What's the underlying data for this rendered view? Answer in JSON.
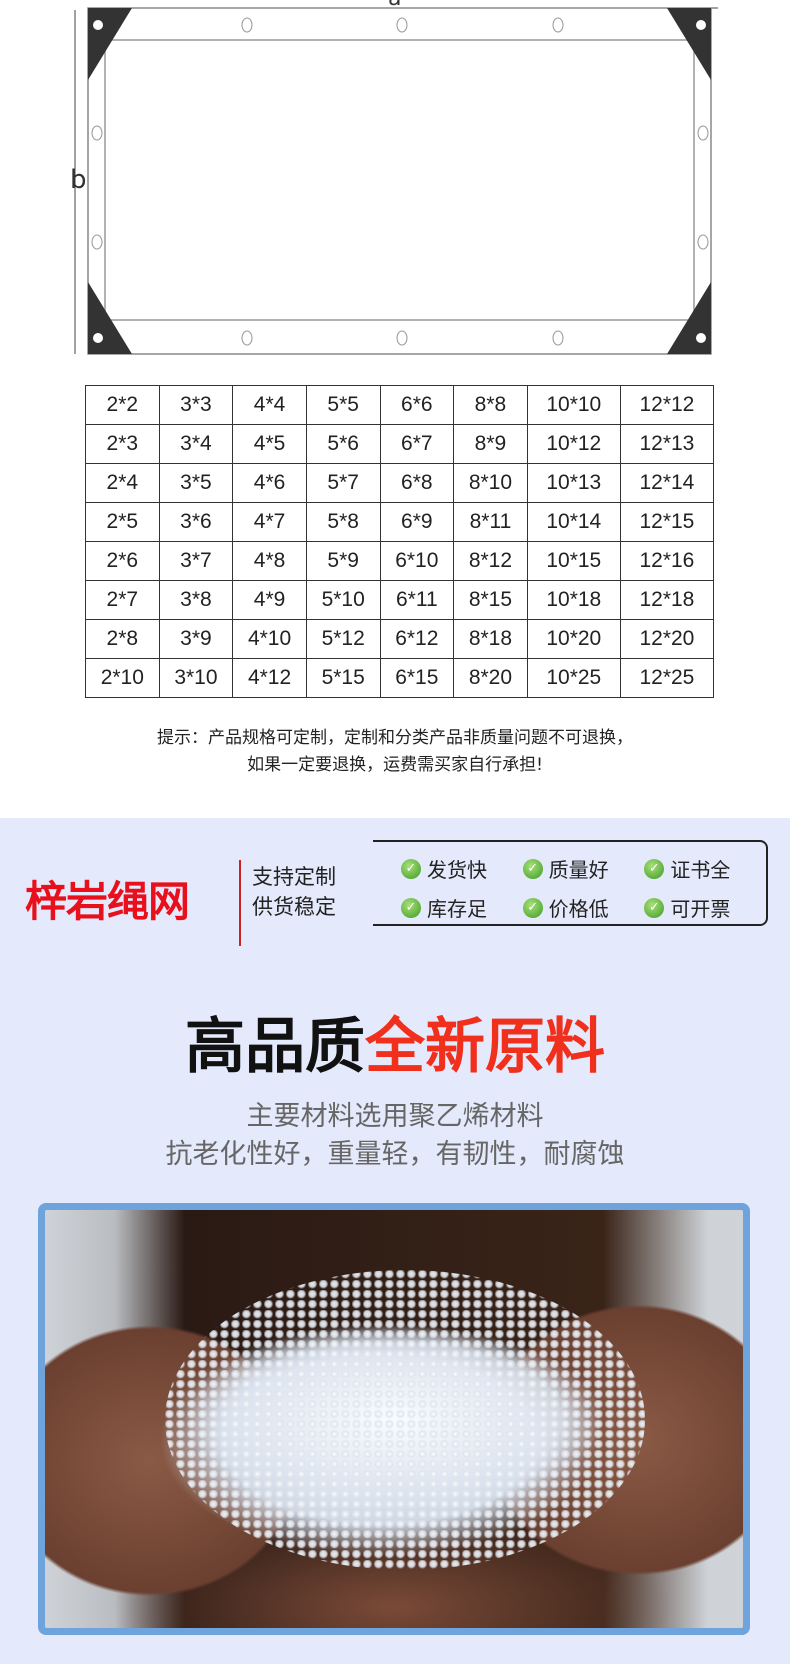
{
  "diagram": {
    "label_a": "a",
    "label_b": "b"
  },
  "size_table": [
    [
      "2*2",
      "3*3",
      "4*4",
      "5*5",
      "6*6",
      "8*8",
      "10*10",
      "12*12"
    ],
    [
      "2*3",
      "3*4",
      "4*5",
      "5*6",
      "6*7",
      "8*9",
      "10*12",
      "12*13"
    ],
    [
      "2*4",
      "3*5",
      "4*6",
      "5*7",
      "6*8",
      "8*10",
      "10*13",
      "12*14"
    ],
    [
      "2*5",
      "3*6",
      "4*7",
      "5*8",
      "6*9",
      "8*11",
      "10*14",
      "12*15"
    ],
    [
      "2*6",
      "3*7",
      "4*8",
      "5*9",
      "6*10",
      "8*12",
      "10*15",
      "12*16"
    ],
    [
      "2*7",
      "3*8",
      "4*9",
      "5*10",
      "6*11",
      "8*15",
      "10*18",
      "12*18"
    ],
    [
      "2*8",
      "3*9",
      "4*10",
      "5*12",
      "6*12",
      "8*18",
      "10*20",
      "12*20"
    ],
    [
      "2*10",
      "3*10",
      "4*12",
      "5*15",
      "6*15",
      "8*20",
      "10*25",
      "12*25"
    ]
  ],
  "tip": {
    "line1": "提示：产品规格可定制，定制和分类产品非质量问题不可退换，",
    "line2": "如果一定要退换，运费需买家自行承担!"
  },
  "brand": {
    "name": "梓岩绳网",
    "slogan1": "支持定制",
    "slogan2": "供货稳定",
    "color": "#e8101c"
  },
  "badges": [
    "发货快",
    "质量好",
    "证书全",
    "库存足",
    "价格低",
    "可开票"
  ],
  "headline": {
    "black": "高品质",
    "red": "全新原料",
    "red_color": "#f0301c"
  },
  "subtitle": {
    "line1": "主要材料选用聚乙烯材料",
    "line2": "抗老化性好，重量轻，有韧性，耐腐蚀"
  }
}
